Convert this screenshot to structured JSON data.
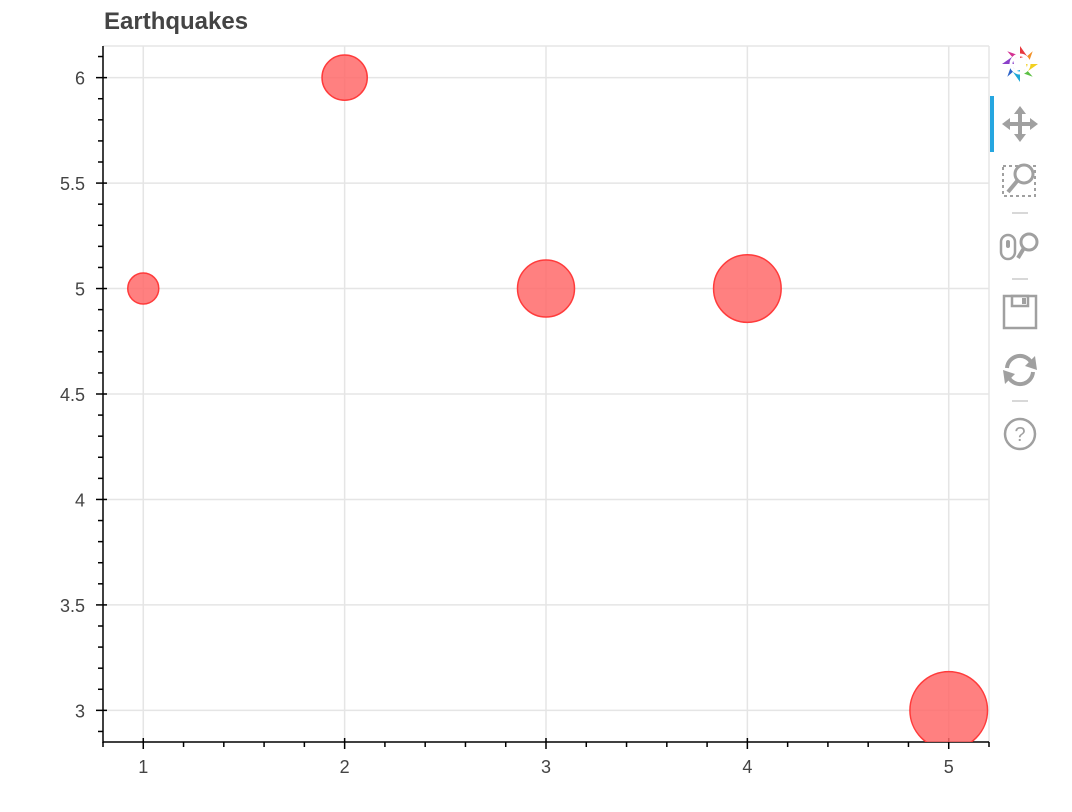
{
  "chart_data": {
    "type": "scatter",
    "title": "Earthquakes",
    "xlabel": "",
    "ylabel": "",
    "xlim": [
      0.8,
      5.2
    ],
    "ylim": [
      2.85,
      6.15
    ],
    "x_ticks": [
      "1",
      "2",
      "3",
      "4",
      "5"
    ],
    "y_ticks": [
      "3",
      "3.5",
      "4",
      "4.5",
      "5",
      "5.5",
      "6"
    ],
    "grid": true,
    "marker_color": "#ff6a6a",
    "marker_edge_color": "#ff3b3b",
    "series": [
      {
        "x": [
          1,
          2,
          3,
          4,
          5
        ],
        "y": [
          5,
          6,
          5,
          5,
          3
        ],
        "size": [
          1,
          2,
          3,
          4,
          5
        ]
      }
    ]
  },
  "toolbar": {
    "tools": [
      {
        "name": "bokeh-logo-icon",
        "interactable": true
      },
      {
        "name": "pan-tool-icon",
        "interactable": true,
        "active": true
      },
      {
        "name": "box-zoom-tool-icon",
        "interactable": true
      },
      {
        "name": "wheel-zoom-tool-icon",
        "interactable": true
      },
      {
        "name": "save-tool-icon",
        "interactable": true
      },
      {
        "name": "reset-tool-icon",
        "interactable": true
      },
      {
        "name": "help-tool-icon",
        "interactable": true
      }
    ],
    "active_color": "#26a6e0",
    "icon_color": "#a0a0a0"
  }
}
